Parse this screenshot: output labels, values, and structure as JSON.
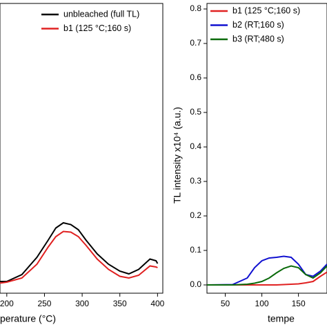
{
  "chart_data": [
    {
      "type": "line",
      "xlabel": "perature (°C)",
      "x": [
        190,
        200,
        220,
        240,
        255,
        265,
        275,
        285,
        295,
        305,
        320,
        335,
        350,
        362,
        375,
        390,
        398,
        400
      ],
      "series": [
        {
          "name": "unbleached (full TL)",
          "color": "#000000",
          "values": [
            0.01,
            0.01,
            0.03,
            0.08,
            0.13,
            0.165,
            0.18,
            0.175,
            0.16,
            0.13,
            0.09,
            0.06,
            0.04,
            0.032,
            0.045,
            0.075,
            0.07,
            0.062
          ]
        },
        {
          "name": "b1 (125 °C;160 s)",
          "color": "#e02020",
          "values": [
            0.005,
            0.008,
            0.02,
            0.06,
            0.11,
            0.14,
            0.155,
            0.153,
            0.14,
            0.115,
            0.075,
            0.045,
            0.025,
            0.02,
            0.028,
            0.055,
            0.052,
            0.05
          ]
        }
      ],
      "xlim": [
        191,
        407
      ],
      "xticks": [
        200,
        250,
        300,
        350,
        400
      ],
      "ylim": [
        -0.024,
        0.816
      ],
      "legend": "upper right"
    },
    {
      "type": "line",
      "xlabel": "tempe",
      "ylabel": "TL intensity x10⁴ (a.u.)",
      "x": [
        25,
        60,
        80,
        90,
        100,
        110,
        120,
        130,
        140,
        150,
        160,
        170,
        180,
        189
      ],
      "series": [
        {
          "name": "b1 (125 °C;160 s)",
          "color": "#e02020",
          "values": [
            0,
            0,
            0,
            0,
            0,
            0,
            0,
            0.001,
            0.002,
            0.003,
            0.006,
            0.01,
            0.025,
            0.037
          ]
        },
        {
          "name": "b2 (RT;160 s)",
          "color": "#1010d0",
          "values": [
            0,
            0.001,
            0.02,
            0.05,
            0.07,
            0.078,
            0.08,
            0.083,
            0.08,
            0.06,
            0.03,
            0.025,
            0.04,
            0.06
          ]
        },
        {
          "name": "b3 (RT;480 s)",
          "color": "#0a6a0a",
          "values": [
            0,
            0,
            0.002,
            0.005,
            0.01,
            0.02,
            0.035,
            0.048,
            0.055,
            0.05,
            0.03,
            0.02,
            0.035,
            0.055
          ]
        }
      ],
      "xlim": [
        25,
        189
      ],
      "xticks": [
        50,
        100,
        150
      ],
      "ylim": [
        -0.024,
        0.816
      ],
      "yticks": [
        {
          "value": 0,
          "label": "0.0"
        },
        0.1,
        0.2,
        0.3,
        0.4,
        0.5,
        0.6,
        0.7,
        0.8
      ],
      "legend": "upper left"
    }
  ]
}
